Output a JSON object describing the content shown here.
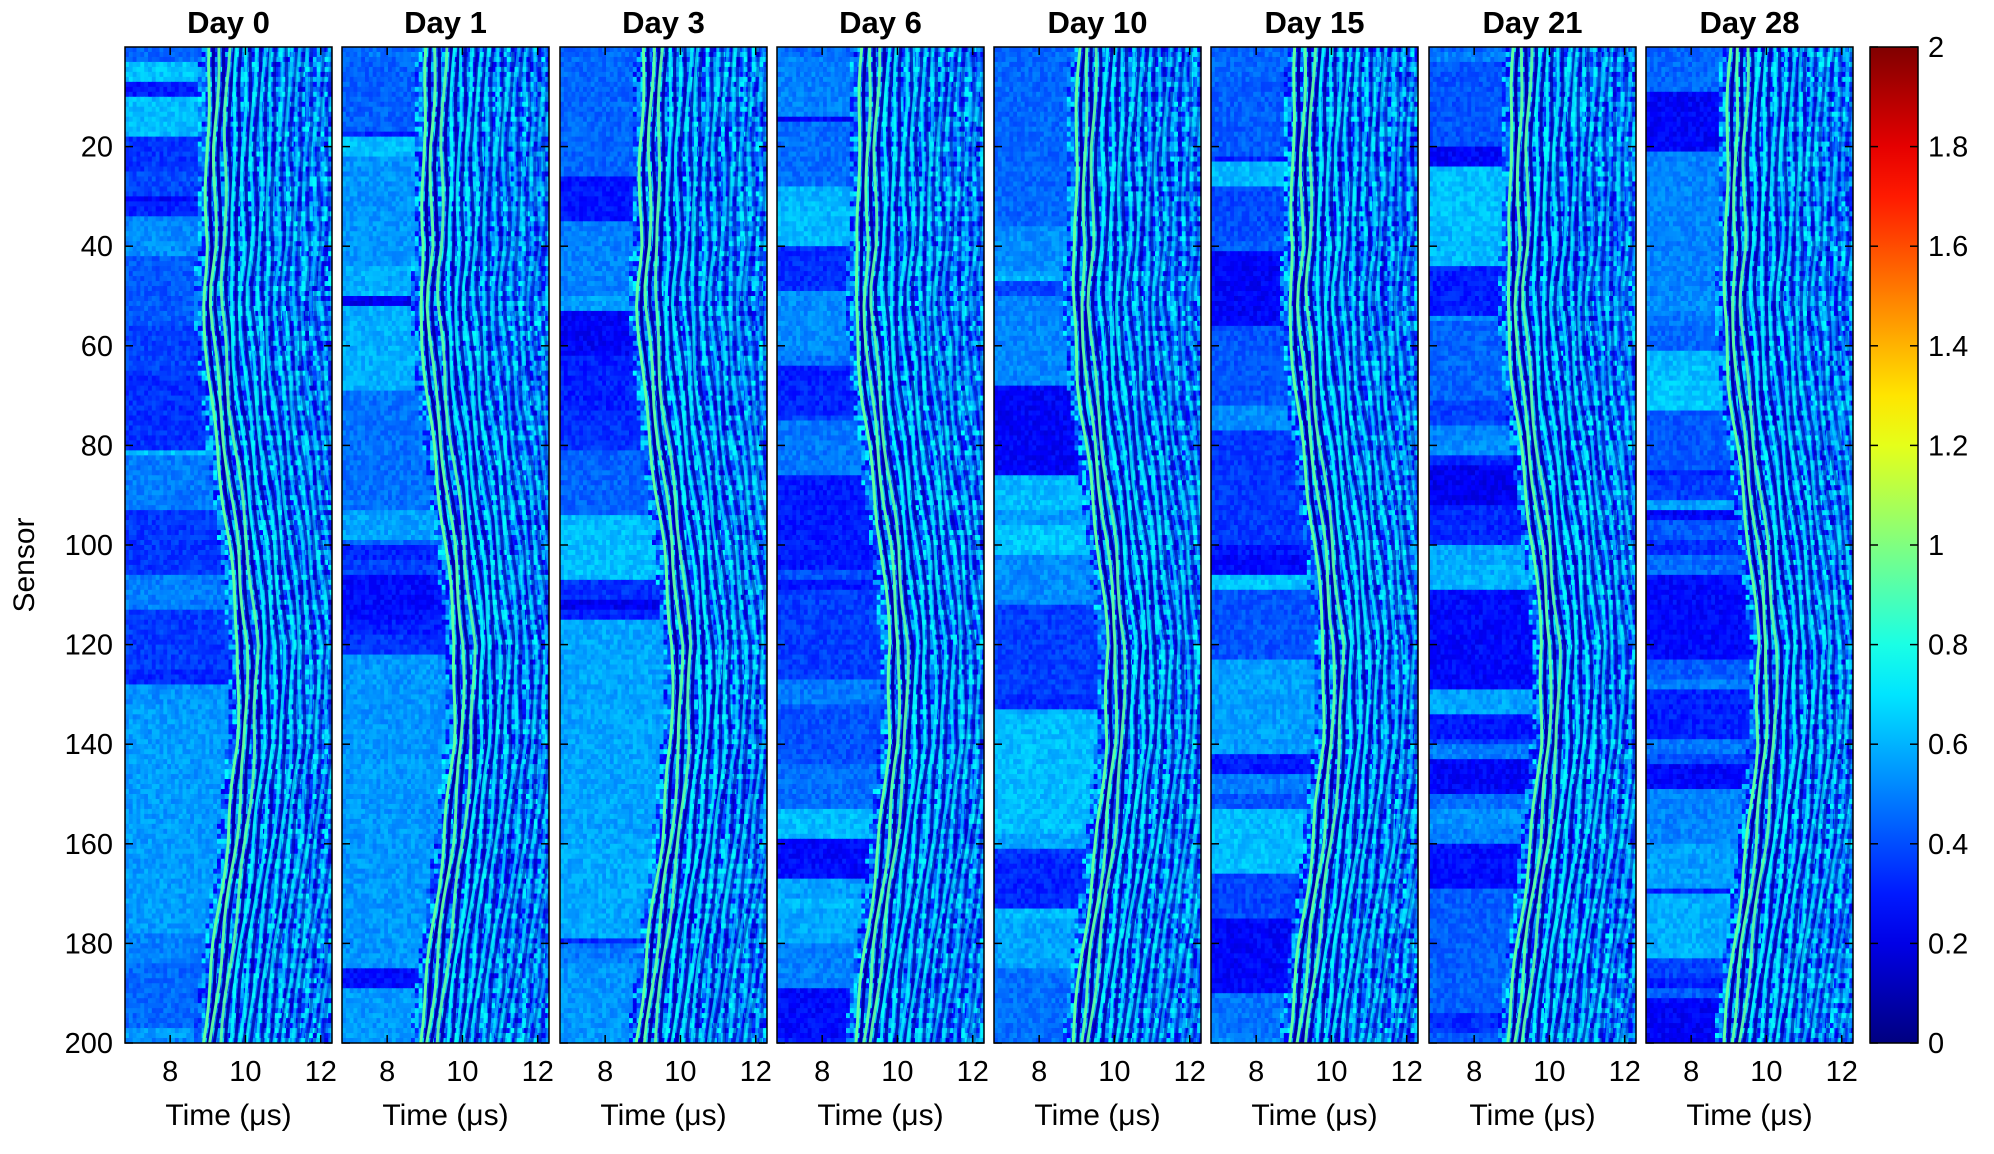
{
  "chart_data": {
    "type": "heatmap",
    "ylabel": "Sensor",
    "xlabel_prefix": "Time (",
    "xlabel_unit": "μs",
    "xlabel_suffix": ")",
    "panels": [
      {
        "title": "Day 0",
        "seed": 11
      },
      {
        "title": "Day 1",
        "seed": 23
      },
      {
        "title": "Day 3",
        "seed": 37
      },
      {
        "title": "Day 6",
        "seed": 41
      },
      {
        "title": "Day 10",
        "seed": 53
      },
      {
        "title": "Day 15",
        "seed": 67
      },
      {
        "title": "Day 21",
        "seed": 79
      },
      {
        "title": "Day 28",
        "seed": 97
      }
    ],
    "x_range": [
      6.8,
      12.3
    ],
    "x_ticks": [
      "8",
      "10",
      "12"
    ],
    "x_tick_values": [
      8,
      10,
      12
    ],
    "y_range": [
      0,
      200
    ],
    "y_ticks": [
      "20",
      "40",
      "60",
      "80",
      "100",
      "120",
      "140",
      "160",
      "180",
      "200"
    ],
    "y_tick_values": [
      20,
      40,
      60,
      80,
      100,
      120,
      140,
      160,
      180,
      200
    ],
    "y_reversed": true,
    "colormap": "jet",
    "color_range": [
      0,
      2
    ],
    "colorbar_ticks": [
      "0",
      "0.2",
      "0.4",
      "0.6",
      "0.8",
      "1",
      "1.2",
      "1.4",
      "1.6",
      "1.8",
      "2"
    ],
    "colorbar_tick_values": [
      0,
      0.2,
      0.4,
      0.6,
      0.8,
      1.0,
      1.2,
      1.4,
      1.6,
      1.8,
      2.0
    ],
    "wavefront": {
      "arrival_us_by_sensor": [
        [
          0,
          9.05
        ],
        [
          20,
          8.95
        ],
        [
          40,
          8.95
        ],
        [
          50,
          8.85
        ],
        [
          70,
          9.05
        ],
        [
          100,
          9.55
        ],
        [
          120,
          9.8
        ],
        [
          140,
          9.75
        ],
        [
          160,
          9.5
        ],
        [
          180,
          9.15
        ],
        [
          200,
          8.85
        ]
      ],
      "stripe_spacing_us": 0.24,
      "stripe_count": 15
    }
  }
}
